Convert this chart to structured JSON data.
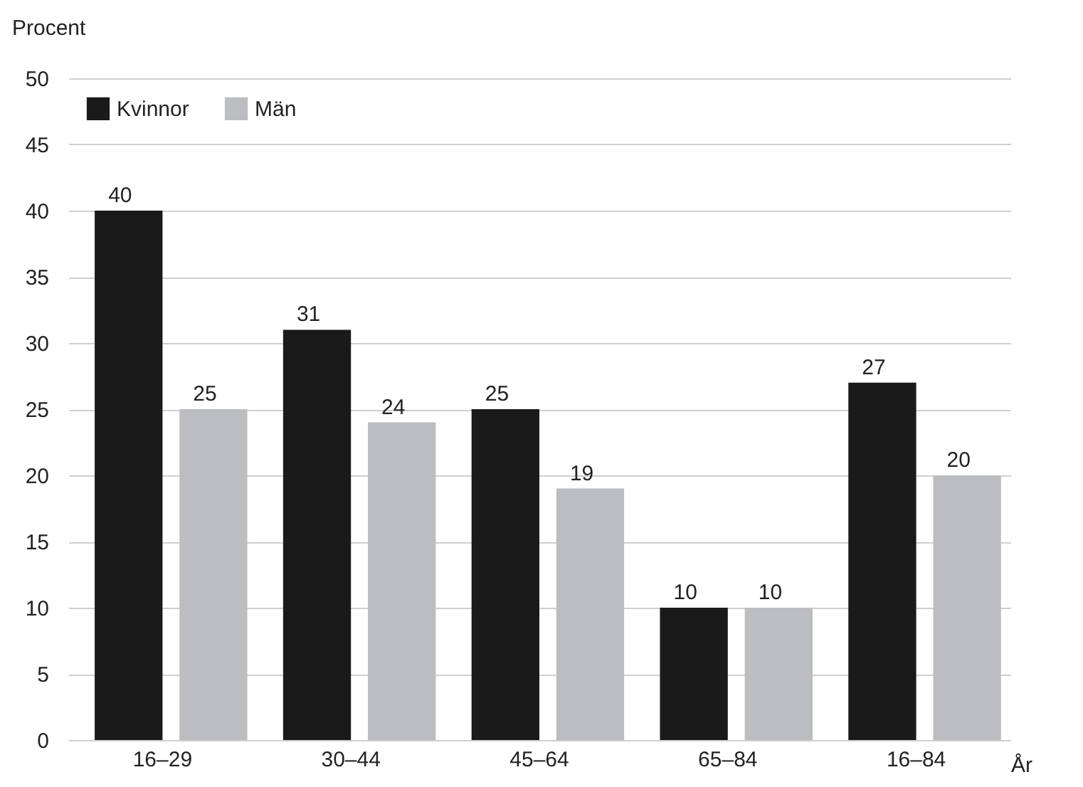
{
  "chart_data": {
    "type": "bar",
    "ylabel": "Procent",
    "xlabel": "År",
    "categories": [
      "16–29",
      "30–44",
      "45–64",
      "65–84",
      "16–84"
    ],
    "series": [
      {
        "name": "Kvinnor",
        "color": "#1a1a1a",
        "values": [
          40,
          31,
          25,
          10,
          27
        ]
      },
      {
        "name": "Män",
        "color": "#bcbdc0",
        "values": [
          25,
          24,
          19,
          10,
          20
        ]
      }
    ],
    "ylim": [
      0,
      50
    ],
    "yticks": [
      0,
      5,
      10,
      15,
      20,
      25,
      30,
      35,
      40,
      45,
      50
    ],
    "grid": "y",
    "legend": "top left",
    "data_labels": true
  }
}
